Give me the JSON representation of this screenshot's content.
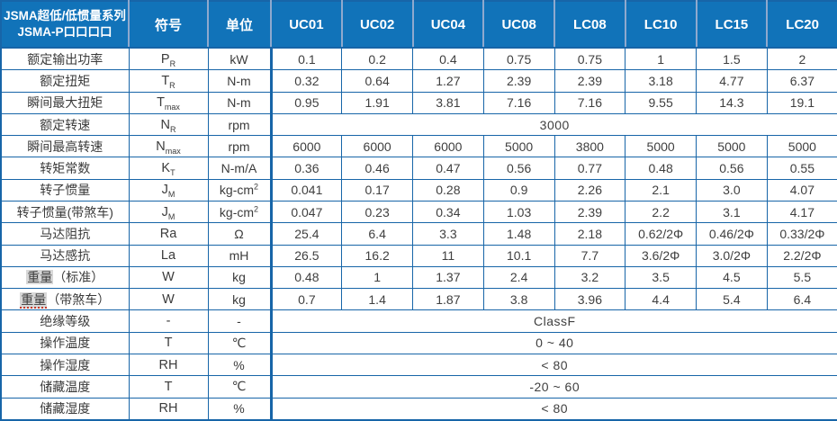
{
  "header": {
    "title_line1": "JSMA超低/低惯量系列",
    "title_line2": "JSMA-P口口口口",
    "symbol_col": "符号",
    "unit_col": "单位",
    "models": [
      "UC01",
      "UC02",
      "UC04",
      "UC08",
      "LC08",
      "LC10",
      "LC15",
      "LC20"
    ]
  },
  "colors": {
    "header_bg": "#1173B9",
    "grid": "#1765A8",
    "header_separator": "#8FA9CE",
    "body_text": "#3B3B3B",
    "label_highlight": "#D8D8D8"
  },
  "rows": [
    {
      "label": "额定输出功率",
      "symbol": {
        "main": "P",
        "sub": "R"
      },
      "unit": "kW",
      "values": [
        "0.1",
        "0.2",
        "0.4",
        "0.75",
        "0.75",
        "1",
        "1.5",
        "2"
      ]
    },
    {
      "label": "额定扭矩",
      "symbol": {
        "main": "T",
        "sub": "R"
      },
      "unit": "N-m",
      "values": [
        "0.32",
        "0.64",
        "1.27",
        "2.39",
        "2.39",
        "3.18",
        "4.77",
        "6.37"
      ]
    },
    {
      "label": "瞬间最大扭矩",
      "symbol": {
        "main": "T",
        "sub": "max"
      },
      "unit": "N-m",
      "values": [
        "0.95",
        "1.91",
        "3.81",
        "7.16",
        "7.16",
        "9.55",
        "14.3",
        "19.1"
      ]
    },
    {
      "label": "额定转速",
      "symbol": {
        "main": "N",
        "sub": "R"
      },
      "unit": "rpm",
      "merged": "3000"
    },
    {
      "label": "瞬间最高转速",
      "symbol": {
        "main": "N",
        "sub": "max"
      },
      "unit": "rpm",
      "values": [
        "6000",
        "6000",
        "6000",
        "5000",
        "3800",
        "5000",
        "5000",
        "5000"
      ]
    },
    {
      "label": "转矩常数",
      "symbol": {
        "main": "K",
        "sub": "T"
      },
      "unit": "N-m/A",
      "values": [
        "0.36",
        "0.46",
        "0.47",
        "0.56",
        "0.77",
        "0.48",
        "0.56",
        "0.55"
      ]
    },
    {
      "label": "转子惯量",
      "symbol": {
        "main": "J",
        "sub": "M"
      },
      "unit": {
        "main": "kg-cm",
        "sup": "2"
      },
      "values": [
        "0.041",
        "0.17",
        "0.28",
        "0.9",
        "2.26",
        "2.1",
        "3.0",
        "4.07"
      ]
    },
    {
      "label": "转子惯量(带煞车)",
      "symbol": {
        "main": "J",
        "sub": "M"
      },
      "unit": {
        "main": "kg-cm",
        "sup": "2"
      },
      "values": [
        "0.047",
        "0.23",
        "0.34",
        "1.03",
        "2.39",
        "2.2",
        "3.1",
        "4.17"
      ]
    },
    {
      "label": "马达阻抗",
      "symbol": "Ra",
      "unit": "Ω",
      "values": [
        "25.4",
        "6.4",
        "3.3",
        "1.48",
        "2.18",
        "0.62/2Φ",
        "0.46/2Φ",
        "0.33/2Φ"
      ]
    },
    {
      "label": "马达感抗",
      "symbol": "La",
      "unit": "mH",
      "values": [
        "26.5",
        "16.2",
        "11",
        "10.1",
        "7.7",
        "3.6/2Φ",
        "3.0/2Φ",
        "2.2/2Φ"
      ]
    },
    {
      "label": [
        {
          "t": "重量",
          "hl": true
        },
        {
          "t": "（标准）"
        }
      ],
      "symbol": "W",
      "unit": "kg",
      "values": [
        "0.48",
        "1",
        "1.37",
        "2.4",
        "3.2",
        "3.5",
        "4.5",
        "5.5"
      ]
    },
    {
      "label": [
        {
          "t": "重量",
          "hl": true,
          "ul": true
        },
        {
          "t": "（带煞车）"
        }
      ],
      "symbol": "W",
      "unit": "kg",
      "values": [
        "0.7",
        "1.4",
        "1.87",
        "3.8",
        "3.96",
        "4.4",
        "5.4",
        "6.4"
      ]
    },
    {
      "label": "绝缘等级",
      "symbol": "-",
      "unit": "-",
      "merged": "ClassF"
    },
    {
      "label": "操作温度",
      "symbol": "T",
      "unit": "℃",
      "merged": "0 ~ 40"
    },
    {
      "label": "操作湿度",
      "symbol": "RH",
      "unit": "%",
      "merged": "< 80"
    },
    {
      "label": "储藏温度",
      "symbol": "T",
      "unit": "℃",
      "merged": "-20 ~ 60"
    },
    {
      "label": "储藏湿度",
      "symbol": "RH",
      "unit": "%",
      "merged": "< 80"
    }
  ]
}
